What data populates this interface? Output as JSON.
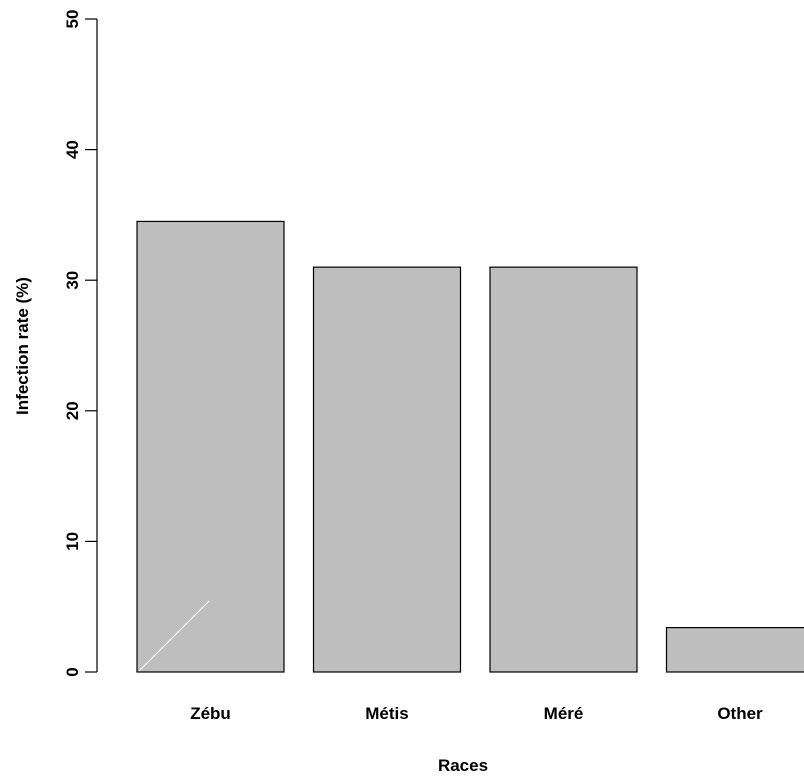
{
  "chart_data": {
    "type": "bar",
    "title": "",
    "xlabel": "Races",
    "ylabel": "Infection rate (%)",
    "categories": [
      "Zébu",
      "Métis",
      "Méré",
      "Other"
    ],
    "values": [
      34.5,
      31.0,
      31.0,
      3.4
    ],
    "ylim": [
      0,
      50
    ],
    "yticks": [
      0,
      10,
      20,
      30,
      40,
      50
    ],
    "bar_color": "#bebebe",
    "bar_edge_color": "#000000",
    "grid": false,
    "legend": null
  }
}
